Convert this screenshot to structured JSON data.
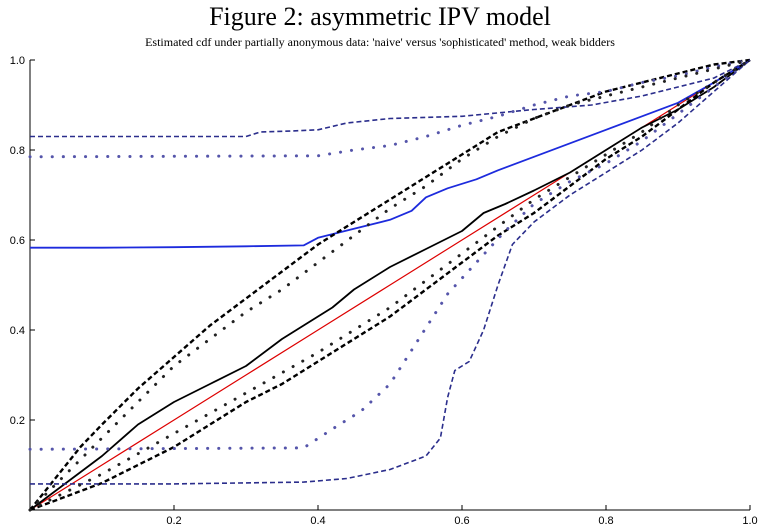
{
  "chart_data": {
    "type": "line",
    "title": "Figure 2: asymmetric IPV model",
    "subtitle": "Estimated cdf under partially anonymous data: 'naive' versus 'sophisticated' method, weak bidders",
    "xlabel": "",
    "ylabel": "",
    "xlim": [
      0,
      1
    ],
    "ylim": [
      0,
      1
    ],
    "xticks": [
      0.2,
      0.4,
      0.6,
      0.8,
      1.0
    ],
    "yticks": [
      0.2,
      0.4,
      0.6,
      0.8,
      1.0
    ],
    "xtick_labels": [
      "0.2",
      "0.4",
      "0.6",
      "0.8",
      "1.0"
    ],
    "ytick_labels": [
      "0.2",
      "0.4",
      "0.6",
      "0.8",
      "1.0"
    ],
    "grid": false,
    "legend": "none",
    "series": [
      {
        "color": "#dd0000",
        "style": "solid",
        "width": 1.2,
        "points": [
          [
            0,
            0
          ],
          [
            0.1,
            0.1
          ],
          [
            0.2,
            0.2
          ],
          [
            0.3,
            0.3
          ],
          [
            0.4,
            0.4
          ],
          [
            0.5,
            0.5
          ],
          [
            0.6,
            0.6
          ],
          [
            0.7,
            0.7
          ],
          [
            0.8,
            0.8
          ],
          [
            0.9,
            0.9
          ],
          [
            1,
            1
          ]
        ]
      },
      {
        "color": "#000000",
        "style": "solid",
        "width": 1.8,
        "points": [
          [
            0,
            0
          ],
          [
            0.05,
            0.06
          ],
          [
            0.1,
            0.12
          ],
          [
            0.15,
            0.19
          ],
          [
            0.2,
            0.24
          ],
          [
            0.25,
            0.28
          ],
          [
            0.3,
            0.32
          ],
          [
            0.35,
            0.38
          ],
          [
            0.38,
            0.41
          ],
          [
            0.42,
            0.45
          ],
          [
            0.45,
            0.49
          ],
          [
            0.5,
            0.54
          ],
          [
            0.55,
            0.58
          ],
          [
            0.6,
            0.62
          ],
          [
            0.63,
            0.66
          ],
          [
            0.66,
            0.68
          ],
          [
            0.7,
            0.71
          ],
          [
            0.75,
            0.75
          ],
          [
            0.8,
            0.8
          ],
          [
            0.85,
            0.85
          ],
          [
            0.9,
            0.89
          ],
          [
            0.95,
            0.94
          ],
          [
            1,
            1
          ]
        ]
      },
      {
        "color": "#1d2bdd",
        "style": "solid",
        "width": 1.8,
        "points": [
          [
            0,
            0.583
          ],
          [
            0.1,
            0.583
          ],
          [
            0.2,
            0.584
          ],
          [
            0.3,
            0.586
          ],
          [
            0.38,
            0.588
          ],
          [
            0.4,
            0.605
          ],
          [
            0.45,
            0.625
          ],
          [
            0.5,
            0.645
          ],
          [
            0.53,
            0.665
          ],
          [
            0.55,
            0.695
          ],
          [
            0.58,
            0.715
          ],
          [
            0.62,
            0.735
          ],
          [
            0.65,
            0.755
          ],
          [
            0.7,
            0.785
          ],
          [
            0.75,
            0.815
          ],
          [
            0.8,
            0.845
          ],
          [
            0.85,
            0.875
          ],
          [
            0.9,
            0.905
          ],
          [
            0.95,
            0.95
          ],
          [
            1,
            1
          ]
        ]
      },
      {
        "color": "#000000",
        "style": "dashed",
        "width": 2.4,
        "points": [
          [
            0,
            0
          ],
          [
            0.03,
            0.06
          ],
          [
            0.07,
            0.14
          ],
          [
            0.1,
            0.19
          ],
          [
            0.15,
            0.27
          ],
          [
            0.2,
            0.34
          ],
          [
            0.25,
            0.41
          ],
          [
            0.3,
            0.47
          ],
          [
            0.35,
            0.53
          ],
          [
            0.4,
            0.59
          ],
          [
            0.45,
            0.64
          ],
          [
            0.5,
            0.69
          ],
          [
            0.55,
            0.74
          ],
          [
            0.6,
            0.79
          ],
          [
            0.65,
            0.84
          ],
          [
            0.7,
            0.87
          ],
          [
            0.75,
            0.9
          ],
          [
            0.8,
            0.93
          ],
          [
            0.85,
            0.95
          ],
          [
            0.9,
            0.97
          ],
          [
            0.95,
            0.99
          ],
          [
            1,
            1
          ]
        ]
      },
      {
        "color": "#000000",
        "style": "dashed",
        "width": 2.4,
        "points": [
          [
            0,
            0
          ],
          [
            0.05,
            0.03
          ],
          [
            0.1,
            0.06
          ],
          [
            0.15,
            0.1
          ],
          [
            0.2,
            0.14
          ],
          [
            0.25,
            0.19
          ],
          [
            0.3,
            0.24
          ],
          [
            0.35,
            0.28
          ],
          [
            0.4,
            0.33
          ],
          [
            0.45,
            0.38
          ],
          [
            0.5,
            0.43
          ],
          [
            0.55,
            0.49
          ],
          [
            0.6,
            0.55
          ],
          [
            0.65,
            0.61
          ],
          [
            0.7,
            0.66
          ],
          [
            0.75,
            0.72
          ],
          [
            0.8,
            0.78
          ],
          [
            0.85,
            0.83
          ],
          [
            0.9,
            0.89
          ],
          [
            0.95,
            0.95
          ],
          [
            1,
            1
          ]
        ]
      },
      {
        "color": "#2b2e8c",
        "style": "dashed",
        "width": 1.6,
        "points": [
          [
            0,
            0.83
          ],
          [
            0.3,
            0.83
          ],
          [
            0.32,
            0.84
          ],
          [
            0.36,
            0.842
          ],
          [
            0.4,
            0.845
          ],
          [
            0.44,
            0.86
          ],
          [
            0.5,
            0.87
          ],
          [
            0.6,
            0.875
          ],
          [
            0.7,
            0.89
          ],
          [
            0.78,
            0.9
          ],
          [
            0.85,
            0.92
          ],
          [
            0.9,
            0.94
          ],
          [
            0.95,
            0.96
          ],
          [
            1,
            1
          ]
        ]
      },
      {
        "color": "#2b2e8c",
        "style": "dashed",
        "width": 1.6,
        "points": [
          [
            0,
            0.058
          ],
          [
            0.2,
            0.058
          ],
          [
            0.38,
            0.062
          ],
          [
            0.44,
            0.07
          ],
          [
            0.5,
            0.09
          ],
          [
            0.55,
            0.12
          ],
          [
            0.57,
            0.16
          ],
          [
            0.58,
            0.25
          ],
          [
            0.59,
            0.31
          ],
          [
            0.6,
            0.32
          ],
          [
            0.61,
            0.33
          ],
          [
            0.63,
            0.4
          ],
          [
            0.65,
            0.5
          ],
          [
            0.67,
            0.59
          ],
          [
            0.7,
            0.64
          ],
          [
            0.75,
            0.7
          ],
          [
            0.8,
            0.75
          ],
          [
            0.85,
            0.8
          ],
          [
            0.9,
            0.86
          ],
          [
            0.95,
            0.93
          ],
          [
            1,
            1
          ]
        ]
      },
      {
        "color": "#5555aa",
        "style": "dotted",
        "width": 1.8,
        "points": [
          [
            0,
            0.785
          ],
          [
            0.4,
            0.787
          ],
          [
            0.45,
            0.8
          ],
          [
            0.5,
            0.81
          ],
          [
            0.55,
            0.83
          ],
          [
            0.6,
            0.855
          ],
          [
            0.65,
            0.875
          ],
          [
            0.7,
            0.9
          ],
          [
            0.75,
            0.92
          ],
          [
            0.8,
            0.93
          ],
          [
            0.85,
            0.95
          ],
          [
            0.9,
            0.965
          ],
          [
            0.95,
            0.985
          ],
          [
            1,
            1
          ]
        ]
      },
      {
        "color": "#5555aa",
        "style": "dotted",
        "width": 1.8,
        "points": [
          [
            0,
            0.135
          ],
          [
            0.38,
            0.138
          ],
          [
            0.42,
            0.18
          ],
          [
            0.46,
            0.22
          ],
          [
            0.5,
            0.28
          ],
          [
            0.54,
            0.38
          ],
          [
            0.58,
            0.48
          ],
          [
            0.62,
            0.55
          ],
          [
            0.66,
            0.62
          ],
          [
            0.7,
            0.68
          ],
          [
            0.75,
            0.73
          ],
          [
            0.8,
            0.77
          ],
          [
            0.85,
            0.82
          ],
          [
            0.9,
            0.88
          ],
          [
            0.95,
            0.94
          ],
          [
            1,
            1
          ]
        ]
      },
      {
        "color": "#222222",
        "style": "dotted",
        "width": 2.0,
        "points": [
          [
            0,
            0
          ],
          [
            0.05,
            0.08
          ],
          [
            0.1,
            0.16
          ],
          [
            0.15,
            0.24
          ],
          [
            0.2,
            0.32
          ],
          [
            0.25,
            0.38
          ],
          [
            0.3,
            0.44
          ],
          [
            0.35,
            0.49
          ],
          [
            0.4,
            0.55
          ],
          [
            0.45,
            0.61
          ],
          [
            0.5,
            0.67
          ],
          [
            0.55,
            0.72
          ],
          [
            0.6,
            0.78
          ],
          [
            0.65,
            0.83
          ],
          [
            0.7,
            0.87
          ],
          [
            0.75,
            0.9
          ],
          [
            0.8,
            0.92
          ],
          [
            0.9,
            0.96
          ],
          [
            1,
            1
          ]
        ]
      },
      {
        "color": "#222222",
        "style": "dotted",
        "width": 2.0,
        "points": [
          [
            0,
            0
          ],
          [
            0.1,
            0.08
          ],
          [
            0.2,
            0.17
          ],
          [
            0.3,
            0.26
          ],
          [
            0.4,
            0.35
          ],
          [
            0.45,
            0.4
          ],
          [
            0.5,
            0.45
          ],
          [
            0.55,
            0.51
          ],
          [
            0.6,
            0.57
          ],
          [
            0.65,
            0.63
          ],
          [
            0.7,
            0.69
          ],
          [
            0.75,
            0.74
          ],
          [
            0.8,
            0.79
          ],
          [
            0.85,
            0.84
          ],
          [
            0.9,
            0.9
          ],
          [
            0.95,
            0.95
          ],
          [
            1,
            1
          ]
        ]
      }
    ]
  }
}
